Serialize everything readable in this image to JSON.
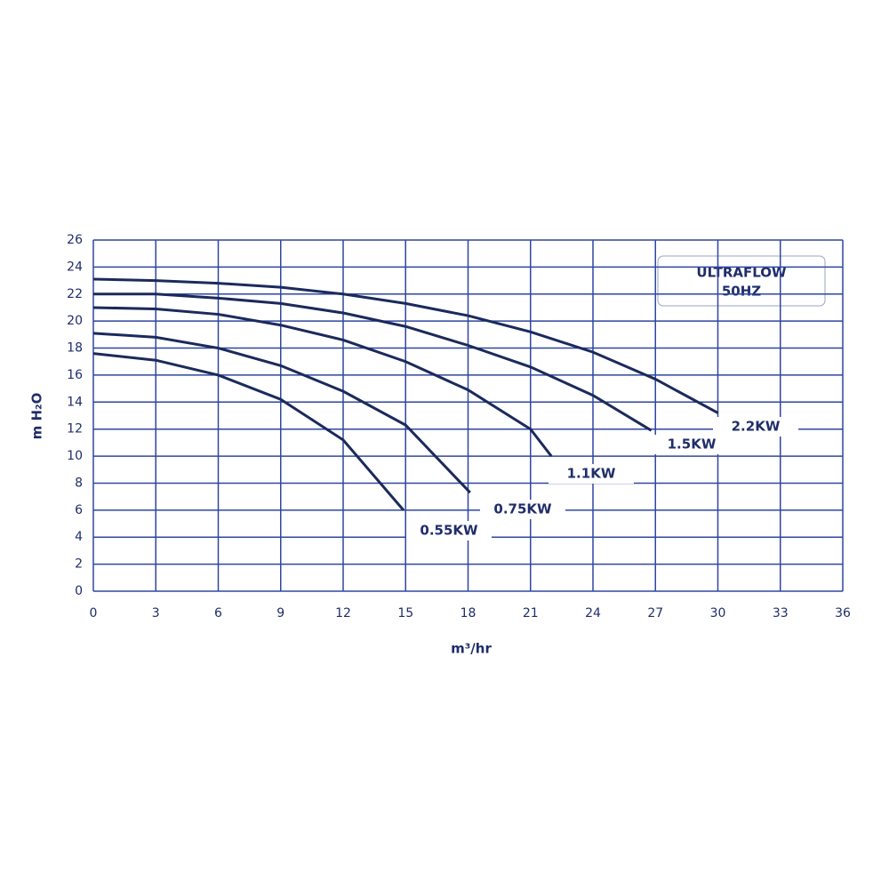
{
  "chart_data": {
    "type": "line",
    "title": "ULTRAFLOW",
    "subtitle": "50HZ",
    "x_label": "m³/hr",
    "y_label": "m H₂O",
    "xlim": [
      0,
      36
    ],
    "xticks": [
      0,
      3,
      6,
      9,
      12,
      15,
      18,
      21,
      24,
      27,
      30,
      33,
      36
    ],
    "ylim": [
      0,
      26
    ],
    "yticks": [
      0,
      2,
      4,
      6,
      8,
      10,
      12,
      14,
      16,
      18,
      20,
      22,
      24,
      26
    ],
    "grid": true,
    "series": [
      {
        "name": "2.2KW",
        "color": "#1b2a5c",
        "x": [
          0,
          3,
          6,
          9,
          12,
          15,
          18,
          21,
          24,
          27,
          30
        ],
        "values": [
          23.1,
          23.0,
          22.8,
          22.5,
          22.0,
          21.3,
          20.4,
          19.2,
          17.7,
          15.7,
          13.2
        ]
      },
      {
        "name": "1.5KW",
        "color": "#1b2a5c",
        "x": [
          0,
          3,
          6,
          9,
          12,
          15,
          18,
          21,
          24,
          26.8
        ],
        "values": [
          22.0,
          22.0,
          21.7,
          21.3,
          20.6,
          19.6,
          18.2,
          16.6,
          14.5,
          11.9
        ]
      },
      {
        "name": "1.1KW",
        "color": "#1b2a5c",
        "x": [
          0,
          3,
          6,
          9,
          12,
          15,
          18,
          21,
          22
        ],
        "values": [
          21.0,
          20.9,
          20.5,
          19.7,
          18.6,
          17.0,
          14.9,
          12.0,
          10.0
        ]
      },
      {
        "name": "0.75KW",
        "color": "#1b2a5c",
        "x": [
          0,
          3,
          6,
          9,
          12,
          15,
          18.1
        ],
        "values": [
          19.1,
          18.8,
          18.0,
          16.7,
          14.8,
          12.3,
          7.3
        ]
      },
      {
        "name": "0.55KW",
        "color": "#1b2a5c",
        "x": [
          0,
          3,
          6,
          9,
          12,
          14.9
        ],
        "values": [
          17.6,
          17.1,
          16.0,
          14.2,
          11.2,
          6.0
        ]
      }
    ]
  }
}
